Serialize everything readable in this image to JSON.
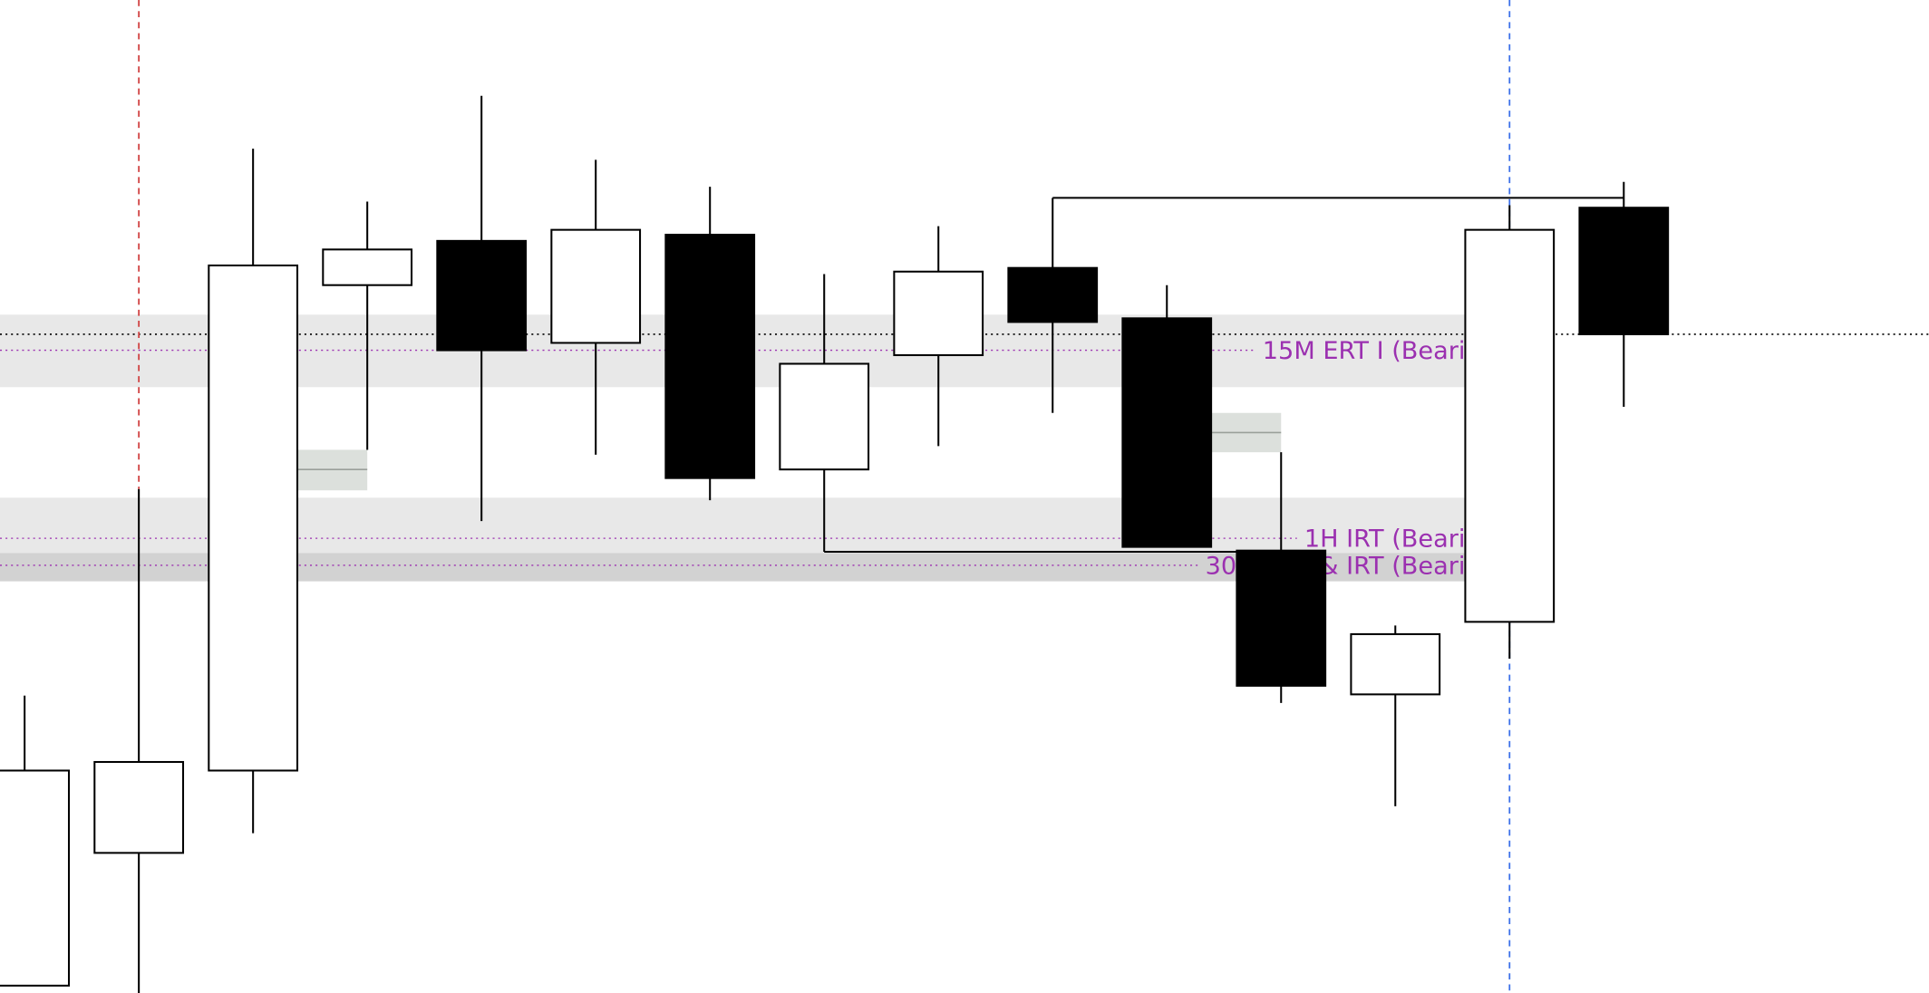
{
  "chart_data": {
    "type": "candlestick",
    "title": "",
    "axes_visible": false,
    "grid": false,
    "colors": {
      "bullish": "#ffffff",
      "bearish": "#000000",
      "outline": "#000000",
      "label": "#9b30b0",
      "red_marker": "#d04040",
      "blue_marker": "#3a6fe8",
      "band": "#e8e8e8",
      "band_dark": "#d2d2d2",
      "gap_box": "#dce0dc"
    },
    "candles": [
      {
        "o": 6,
        "h": 242,
        "l": 6,
        "c": 181
      },
      {
        "o": 114,
        "h": 410,
        "l": 0,
        "c": 188
      },
      {
        "o": 181,
        "h": 687,
        "l": 130,
        "c": 592
      },
      {
        "o": 576,
        "h": 644,
        "l": 442,
        "c": 605
      },
      {
        "o": 612,
        "h": 730,
        "l": 384,
        "c": 523
      },
      {
        "o": 529,
        "h": 678,
        "l": 438,
        "c": 621
      },
      {
        "o": 617,
        "h": 656,
        "l": 401,
        "c": 419
      },
      {
        "o": 426,
        "h": 585,
        "l": 359,
        "c": 512
      },
      {
        "o": 519,
        "h": 624,
        "l": 445,
        "c": 587
      },
      {
        "o": 590,
        "h": 647,
        "l": 472,
        "c": 546
      },
      {
        "o": 549,
        "h": 576,
        "l": 363,
        "c": 363
      },
      {
        "o": 360,
        "h": 440,
        "l": 236,
        "c": 250
      },
      {
        "o": 243,
        "h": 299,
        "l": 152,
        "c": 292
      },
      {
        "o": 302,
        "h": 641,
        "l": 272,
        "c": 621
      },
      {
        "o": 639,
        "h": 660,
        "l": 477,
        "c": 536
      }
    ],
    "bands": [
      {
        "top": 552,
        "bottom": 493,
        "from_candle": 0,
        "to_candle": 13
      },
      {
        "top": 403,
        "bottom": 358,
        "from_candle": 0,
        "to_candle": 13
      },
      {
        "top": 358,
        "bottom": 335,
        "from_candle": 0,
        "to_candle": 13,
        "dark": true
      }
    ],
    "gap_boxes": [
      {
        "top": 442,
        "bottom": 409,
        "mid": 426,
        "after_candle": 2
      },
      {
        "top": 472,
        "bottom": 440,
        "mid": 456,
        "after_candle": 10
      }
    ],
    "levels": [
      {
        "price": 536,
        "style": "black-dotted",
        "full_width": true
      },
      {
        "price": 523,
        "style": "purple-dotted",
        "label": "15M ERT I (Beari",
        "to_candle": 13
      },
      {
        "price": 370,
        "style": "purple-dotted",
        "label": "1H IRT (Beari",
        "to_candle": 13
      },
      {
        "price": 348,
        "style": "purple-dotted",
        "label": "30M ERT & IRT (Beari",
        "to_candle": 13
      }
    ],
    "connectors": [
      {
        "price": 647,
        "from_candle": 9,
        "to_candle": 14
      },
      {
        "price": 359,
        "from_candle": 7,
        "to_candle": 11
      }
    ],
    "vertical_markers": [
      {
        "candle": 1,
        "color": "red",
        "style": "dashed",
        "partial": true
      },
      {
        "candle": 13,
        "color": "blue",
        "style": "dashed"
      }
    ]
  }
}
